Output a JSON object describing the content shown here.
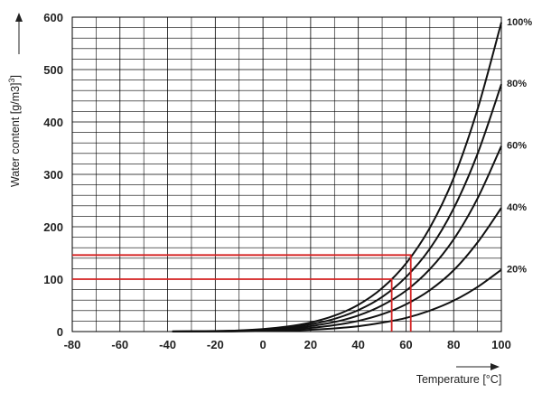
{
  "chart_data": {
    "type": "line",
    "xlabel": "Temperature [°C]",
    "ylabel": "Water content [g/m3]",
    "ylabel_unit_superscript": "3",
    "xlim": [
      -80,
      100
    ],
    "ylim": [
      0,
      600
    ],
    "x_ticks": [
      "-80",
      "-60",
      "-40",
      "-20",
      "0",
      "20",
      "40",
      "60",
      "80",
      "100"
    ],
    "y_ticks": [
      "0",
      "100",
      "200",
      "300",
      "400",
      "500",
      "600"
    ],
    "grid": true,
    "colors": {
      "curve": "#111111",
      "highlight": "#d42020",
      "grid": "#000000"
    },
    "x": [
      -38,
      -20,
      -10,
      0,
      10,
      20,
      30,
      40,
      50,
      60,
      70,
      80,
      90,
      100
    ],
    "series": [
      {
        "name": "100%",
        "values": [
          0.2,
          1,
          2.2,
          4.8,
          9.4,
          17.3,
          30.4,
          51.1,
          83,
          130,
          198,
          293,
          424,
          590
        ]
      },
      {
        "name": "80%",
        "values": [
          0.16,
          0.8,
          1.8,
          3.8,
          7.5,
          13.8,
          24.3,
          40.9,
          66,
          104,
          158,
          235,
          339,
          472
        ]
      },
      {
        "name": "60%",
        "values": [
          0.12,
          0.6,
          1.3,
          2.9,
          5.6,
          10.4,
          18.2,
          30.7,
          50,
          78,
          119,
          176,
          254,
          354
        ]
      },
      {
        "name": "40%",
        "values": [
          0.08,
          0.4,
          0.9,
          1.9,
          3.8,
          6.9,
          12.2,
          20.4,
          33,
          52,
          79,
          117,
          170,
          236
        ]
      },
      {
        "name": "20%",
        "values": [
          0.04,
          0.2,
          0.4,
          1,
          1.9,
          3.5,
          6.1,
          10.2,
          17,
          26,
          40,
          59,
          85,
          118
        ]
      }
    ],
    "annotations": [
      {
        "y": 146,
        "x": 62
      },
      {
        "y": 100,
        "x": 54
      }
    ]
  }
}
